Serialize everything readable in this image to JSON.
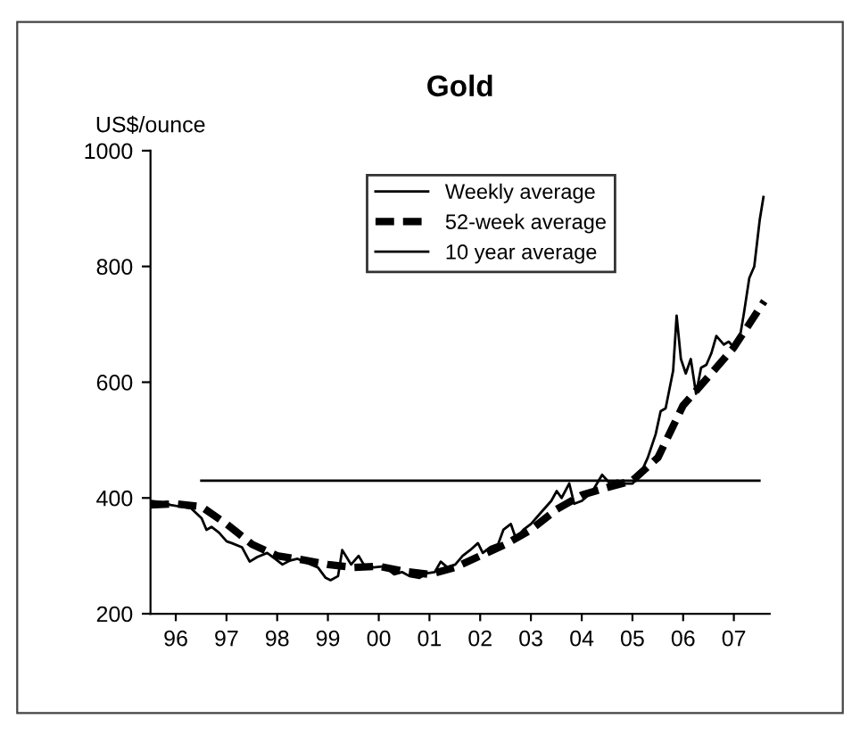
{
  "chart_data": {
    "type": "line",
    "title": "Gold",
    "ylabel": "US$/ounce",
    "ylim": [
      200,
      1000
    ],
    "yticks": [
      200,
      400,
      600,
      800,
      1000
    ],
    "xlim": [
      "1996-01-01",
      "2008-03-15"
    ],
    "xticks": [
      {
        "value": "1996-07-01",
        "label": "96"
      },
      {
        "value": "1997-07-01",
        "label": "97"
      },
      {
        "value": "1998-07-01",
        "label": "98"
      },
      {
        "value": "1999-07-01",
        "label": "99"
      },
      {
        "value": "2000-07-01",
        "label": "00"
      },
      {
        "value": "2001-07-01",
        "label": "01"
      },
      {
        "value": "2002-07-01",
        "label": "02"
      },
      {
        "value": "2003-07-01",
        "label": "03"
      },
      {
        "value": "2004-07-01",
        "label": "04"
      },
      {
        "value": "2005-07-01",
        "label": "05"
      },
      {
        "value": "2006-07-01",
        "label": "06"
      },
      {
        "value": "2007-07-01",
        "label": "07"
      }
    ],
    "grid": false,
    "legend": "top",
    "marker": "none",
    "series": [
      {
        "name": "Weekly average",
        "color": "#000000",
        "line_style": "solid",
        "x": [
          "1996-01-05",
          "1996-03-15",
          "1996-05-25",
          "1996-08-05",
          "1996-10-20",
          "1997-01-03",
          "1997-02-07",
          "1997-03-15",
          "1997-05-08",
          "1997-07-02",
          "1997-08-08",
          "1997-10-20",
          "1997-12-15",
          "1998-02-07",
          "1998-04-20",
          "1998-06-15",
          "1998-08-08",
          "1998-10-02",
          "1998-11-25",
          "1999-02-07",
          "1999-04-20",
          "1999-06-15",
          "1999-07-20",
          "1999-09-12",
          "1999-10-12",
          "1999-11-07",
          "1999-12-15",
          "2000-02-07",
          "2000-03-15",
          "2000-05-25",
          "2000-08-08",
          "2000-10-20",
          "2000-12-15",
          "2001-02-07",
          "2001-04-20",
          "2001-06-15",
          "2001-08-08",
          "2001-09-20",
          "2001-11-07",
          "2002-01-03",
          "2002-02-25",
          "2002-04-20",
          "2002-06-15",
          "2002-07-20",
          "2002-09-12",
          "2002-11-07",
          "2002-12-15",
          "2003-02-07",
          "2003-03-15",
          "2003-05-08",
          "2003-07-02",
          "2003-09-12",
          "2003-11-25",
          "2004-01-03",
          "2004-02-07",
          "2004-04-02",
          "2004-05-08",
          "2004-07-02",
          "2004-09-12",
          "2004-11-25",
          "2005-01-20",
          "2005-03-15",
          "2005-05-08",
          "2005-07-02",
          "2005-08-25",
          "2005-10-20",
          "2005-12-15",
          "2006-01-20",
          "2006-02-25",
          "2006-04-20",
          "2006-05-15",
          "2006-06-15",
          "2006-07-20",
          "2006-08-25",
          "2006-10-02",
          "2006-11-07",
          "2006-12-15",
          "2007-01-20",
          "2007-02-25",
          "2007-04-20",
          "2007-05-25",
          "2007-07-02",
          "2007-08-08",
          "2007-09-12",
          "2007-10-20",
          "2007-11-25",
          "2008-01-03",
          "2008-01-30"
        ],
        "values": [
          395,
          393,
          388,
          385,
          382,
          365,
          345,
          350,
          340,
          325,
          322,
          315,
          290,
          298,
          305,
          295,
          285,
          292,
          295,
          287,
          280,
          262,
          258,
          265,
          310,
          300,
          285,
          300,
          285,
          280,
          282,
          268,
          272,
          265,
          262,
          270,
          272,
          290,
          280,
          285,
          300,
          310,
          322,
          305,
          315,
          320,
          345,
          355,
          330,
          345,
          355,
          375,
          395,
          412,
          400,
          425,
          390,
          395,
          410,
          440,
          425,
          430,
          425,
          425,
          440,
          470,
          510,
          550,
          555,
          620,
          715,
          640,
          615,
          640,
          580,
          625,
          630,
          650,
          680,
          665,
          670,
          660,
          670,
          720,
          780,
          800,
          880,
          920
        ]
      },
      {
        "name": "52-week average",
        "color": "#000000",
        "line_style": "dashed",
        "x": [
          "1996-01-01",
          "1996-07-01",
          "1997-01-01",
          "1997-07-01",
          "1998-01-01",
          "1998-07-01",
          "1999-01-01",
          "1999-07-01",
          "2000-01-01",
          "2000-07-01",
          "2001-01-01",
          "2001-07-01",
          "2002-01-01",
          "2002-07-01",
          "2003-01-01",
          "2003-07-01",
          "2004-01-01",
          "2004-07-01",
          "2005-01-01",
          "2005-07-01",
          "2006-01-01",
          "2006-07-01",
          "2007-01-01",
          "2007-07-01",
          "2008-02-05"
        ],
        "values": [
          388,
          390,
          385,
          355,
          320,
          300,
          293,
          285,
          280,
          282,
          273,
          268,
          280,
          300,
          320,
          345,
          380,
          405,
          418,
          430,
          470,
          560,
          610,
          660,
          740
        ]
      },
      {
        "name": "10 year average",
        "color": "#000000",
        "line_style": "solid",
        "x": [
          "1997-01-01",
          "2008-01-01"
        ],
        "values": [
          430,
          430
        ]
      }
    ]
  }
}
